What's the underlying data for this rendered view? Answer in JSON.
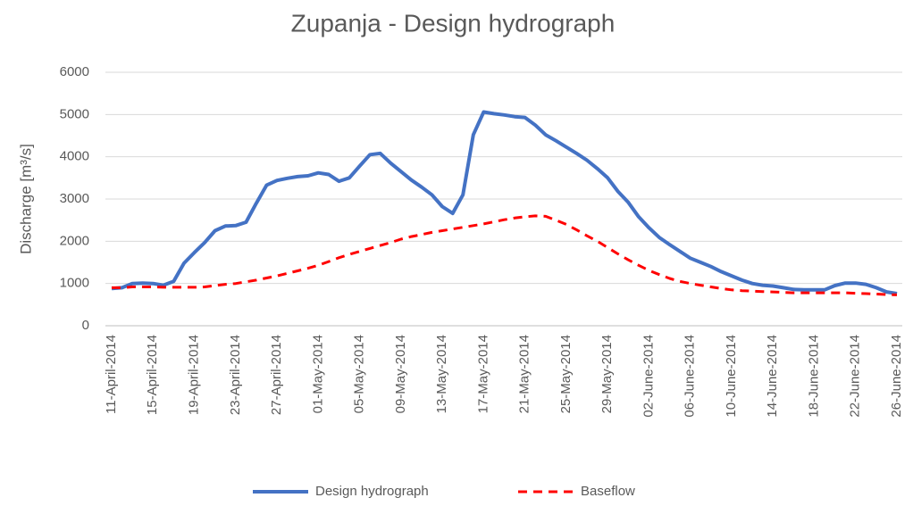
{
  "chart_data": {
    "type": "line",
    "title": "Zupanja - Design hydrograph",
    "y_label": "Discharge [m³/s]",
    "categories": [
      "11-April-2014",
      null,
      null,
      null,
      "15-April-2014",
      null,
      null,
      null,
      "19-April-2014",
      null,
      null,
      null,
      "23-April-2014",
      null,
      null,
      null,
      "27-April-2014",
      null,
      null,
      null,
      "01-May-2014",
      null,
      null,
      null,
      "05-May-2014",
      null,
      null,
      null,
      "09-May-2014",
      null,
      null,
      null,
      "13-May-2014",
      null,
      null,
      null,
      "17-May-2014",
      null,
      null,
      null,
      "21-May-2014",
      null,
      null,
      null,
      "25-May-2014",
      null,
      null,
      null,
      "29-May-2014",
      null,
      null,
      null,
      "02-June-2014",
      null,
      null,
      null,
      "06-June-2014",
      null,
      null,
      null,
      "10-June-2014",
      null,
      null,
      null,
      "14-June-2014",
      null,
      null,
      null,
      "18-June-2014",
      null,
      null,
      null,
      "22-June-2014",
      null,
      null,
      null,
      "26-June-2014"
    ],
    "series": [
      {
        "name": "Design hydrograph",
        "color": "#4472c4",
        "dash": false,
        "values": [
          880,
          900,
          1000,
          1010,
          1000,
          960,
          1050,
          1480,
          1730,
          1970,
          2250,
          2360,
          2370,
          2450,
          2900,
          3330,
          3440,
          3490,
          3530,
          3550,
          3620,
          3580,
          3420,
          3500,
          3780,
          4050,
          4080,
          3850,
          3650,
          3450,
          3280,
          3100,
          2820,
          2660,
          3100,
          4520,
          5060,
          5020,
          4990,
          4950,
          4930,
          4750,
          4520,
          4380,
          4230,
          4080,
          3920,
          3720,
          3500,
          3180,
          2920,
          2580,
          2320,
          2090,
          1920,
          1760,
          1600,
          1500,
          1400,
          1280,
          1180,
          1080,
          1000,
          960,
          940,
          900,
          860,
          850,
          850,
          850,
          950,
          1010,
          1010,
          980,
          900,
          800,
          760
        ]
      },
      {
        "name": "Baseflow",
        "color": "#ff0000",
        "dash": true,
        "values": [
          900,
          900,
          920,
          920,
          920,
          910,
          910,
          910,
          910,
          920,
          950,
          980,
          1000,
          1040,
          1080,
          1130,
          1180,
          1240,
          1300,
          1360,
          1430,
          1520,
          1610,
          1690,
          1760,
          1830,
          1900,
          1970,
          2050,
          2110,
          2160,
          2210,
          2250,
          2290,
          2330,
          2370,
          2410,
          2460,
          2510,
          2550,
          2580,
          2600,
          2590,
          2500,
          2400,
          2270,
          2130,
          2000,
          1850,
          1700,
          1560,
          1430,
          1310,
          1210,
          1120,
          1050,
          1000,
          960,
          920,
          880,
          850,
          830,
          820,
          810,
          800,
          790,
          780,
          780,
          780,
          780,
          780,
          780,
          770,
          760,
          750,
          740,
          730
        ]
      }
    ],
    "ylim": [
      0,
      6000
    ],
    "yticks": [
      0,
      1000,
      2000,
      3000,
      4000,
      5000,
      6000
    ],
    "grid": true,
    "legend": "bottom"
  }
}
